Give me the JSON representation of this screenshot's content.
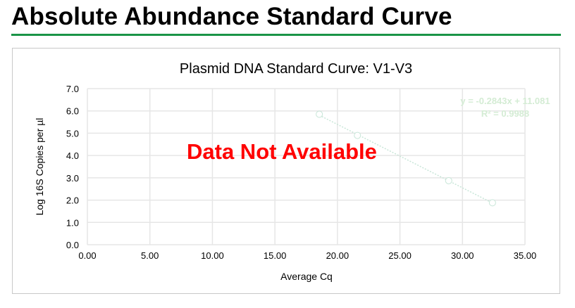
{
  "page": {
    "title": "Absolute Abundance Standard Curve",
    "accent_color": "#1a9447"
  },
  "overlay": {
    "text": "Data Not Available",
    "color": "#ff0000"
  },
  "chart_data": {
    "type": "scatter",
    "title": "Plasmid DNA Standard Curve: V1-V3",
    "xlabel": "Average Cq",
    "ylabel": "Log 16S Copies per µl",
    "xlim": [
      0,
      35
    ],
    "ylim": [
      0,
      7
    ],
    "xticks": [
      "0.00",
      "5.00",
      "10.00",
      "15.00",
      "20.00",
      "25.00",
      "30.00",
      "35.00"
    ],
    "yticks": [
      "0.0",
      "1.0",
      "2.0",
      "3.0",
      "4.0",
      "5.0",
      "6.0",
      "7.0"
    ],
    "grid": true,
    "points": [
      {
        "x": 18.55,
        "y": 5.85
      },
      {
        "x": 21.6,
        "y": 4.9
      },
      {
        "x": 28.9,
        "y": 2.87
      },
      {
        "x": 32.4,
        "y": 1.88
      }
    ],
    "trendline": {
      "slope": -0.2843,
      "intercept": 11.081,
      "style": "dotted"
    },
    "equation": "y = -0.2843x + 11.081",
    "r_squared": "R² = 0.9988",
    "marker_color": "#c8e6d8",
    "label_color": "#d4ecd4"
  }
}
